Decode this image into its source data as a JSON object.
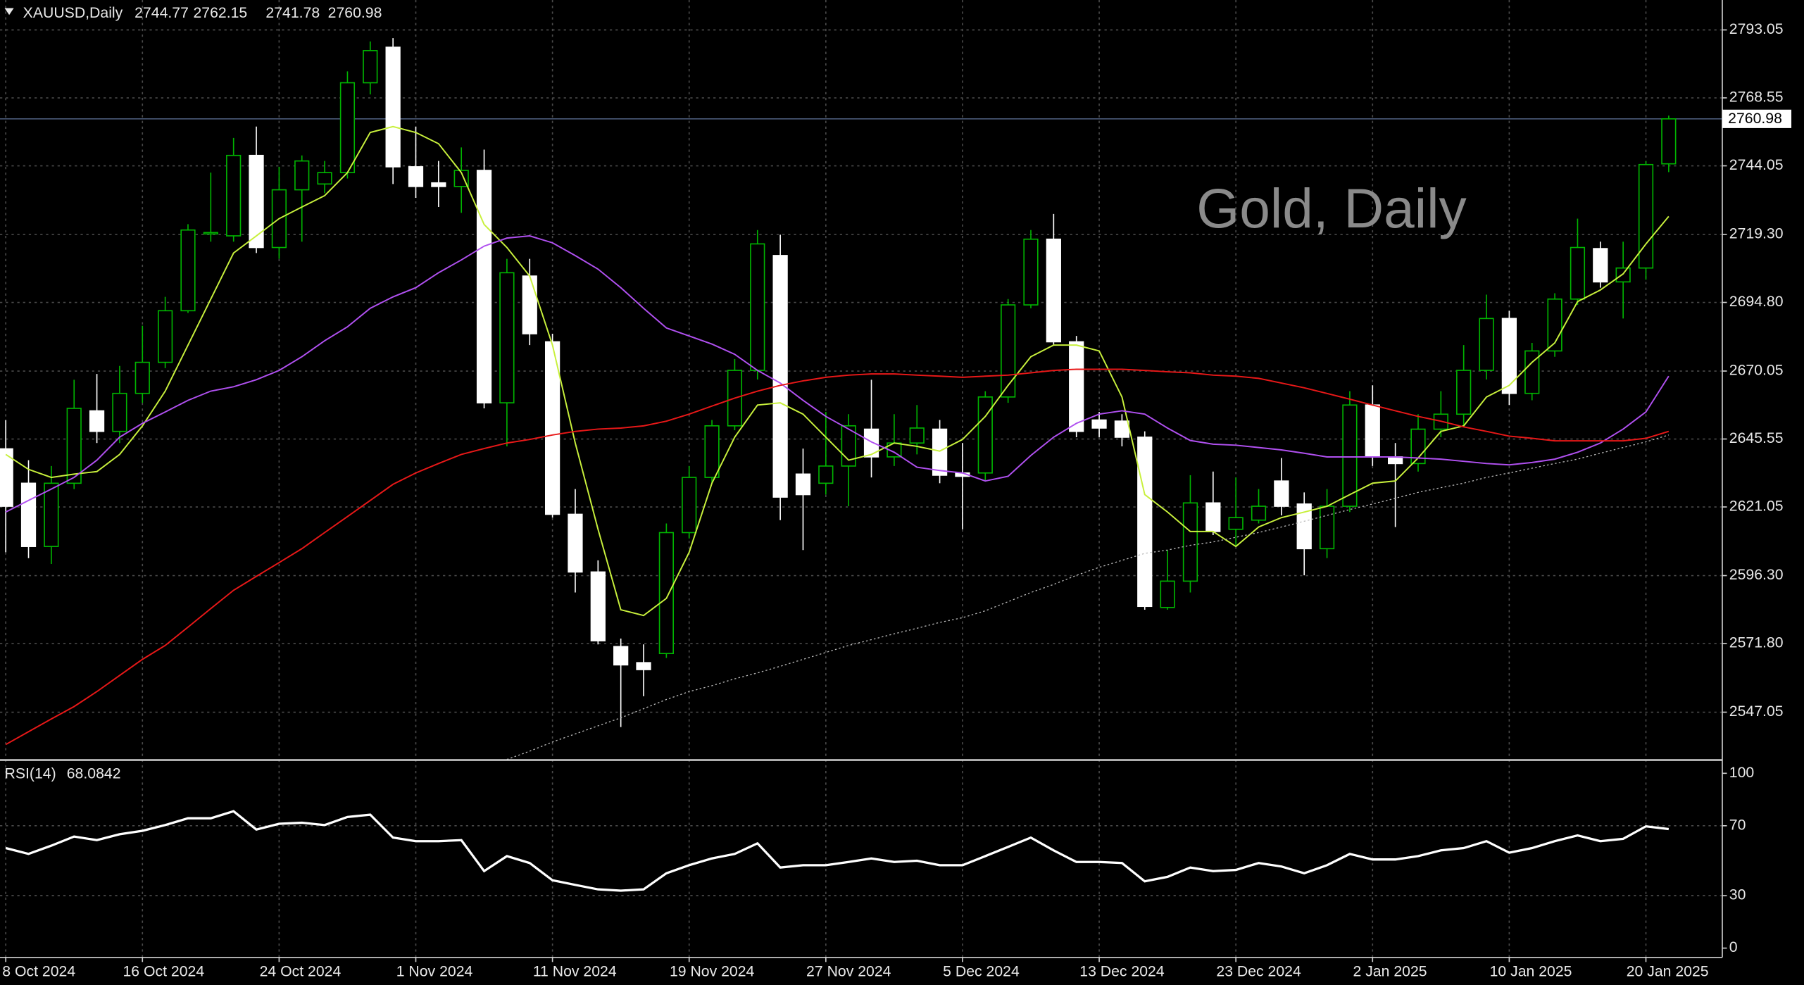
{
  "chart_data": [
    {
      "type": "candlestick",
      "symbol": "XAUUSD,Daily",
      "watermark": "Gold, Daily",
      "categories": [
        "8 Oct 2024",
        null,
        null,
        null,
        null,
        null,
        "16 Oct 2024",
        null,
        null,
        null,
        null,
        null,
        "24 Oct 2024",
        null,
        null,
        null,
        null,
        null,
        "1 Nov 2024",
        null,
        null,
        null,
        null,
        null,
        "11 Nov 2024",
        null,
        null,
        null,
        null,
        null,
        "19 Nov 2024",
        null,
        null,
        null,
        null,
        null,
        "27 Nov 2024",
        null,
        null,
        null,
        null,
        null,
        "5 Dec 2024",
        null,
        null,
        null,
        null,
        null,
        "13 Dec 2024",
        null,
        null,
        null,
        null,
        null,
        "23 Dec 2024",
        null,
        null,
        null,
        null,
        null,
        "2 Jan 2025",
        null,
        null,
        null,
        null,
        null,
        "10 Jan 2025",
        null,
        null,
        null,
        null,
        null,
        "20 Jan 2025",
        null
      ],
      "open": [
        2642.0,
        2629.6,
        2606.8,
        2629.6,
        2655.7,
        2648.3,
        2662.0,
        2673.2,
        2691.8,
        2719.6,
        2718.8,
        2747.8,
        2714.6,
        2735.4,
        2737.5,
        2741.6,
        2774.0,
        2786.8,
        2743.7,
        2737.9,
        2736.6,
        2742.4,
        2658.6,
        2704.3,
        2680.6,
        2618.4,
        2597.6,
        2570.7,
        2564.9,
        2568.2,
        2611.8,
        2631.7,
        2650.3,
        2670.3,
        2711.7,
        2632.9,
        2629.6,
        2635.8,
        2649.1,
        2639.1,
        2644.1,
        2649.1,
        2633.3,
        2633.3,
        2660.7,
        2693.9,
        2717.6,
        2680.6,
        2652.4,
        2652.0,
        2646.2,
        2584.8,
        2594.3,
        2622.5,
        2613.0,
        2616.3,
        2630.4,
        2622.1,
        2606.0,
        2621.3,
        2657.8,
        2639.1,
        2636.7,
        2649.1,
        2654.5,
        2670.3,
        2689.0,
        2662.0,
        2677.3,
        2696.0,
        2714.2,
        2702.2,
        2707.2,
        2744.77
      ],
      "high": [
        2652.4,
        2637.9,
        2635.8,
        2666.9,
        2669.0,
        2671.9,
        2686.4,
        2696.8,
        2723.0,
        2741.6,
        2754.1,
        2758.2,
        2743.7,
        2747.8,
        2745.8,
        2778.1,
        2788.9,
        2790.1,
        2758.2,
        2745.8,
        2750.7,
        2749.9,
        2710.5,
        2710.5,
        2683.5,
        2627.5,
        2601.8,
        2573.6,
        2571.5,
        2615.1,
        2635.8,
        2652.4,
        2674.4,
        2720.9,
        2719.2,
        2642.1,
        2655.3,
        2654.5,
        2666.9,
        2654.5,
        2657.8,
        2652.4,
        2644.1,
        2662.8,
        2696.0,
        2720.9,
        2726.7,
        2682.7,
        2655.3,
        2654.5,
        2648.3,
        2605.5,
        2632.5,
        2633.8,
        2631.7,
        2627.5,
        2638.7,
        2626.3,
        2627.5,
        2662.8,
        2664.9,
        2644.1,
        2654.5,
        2662.8,
        2679.4,
        2697.6,
        2691.8,
        2680.2,
        2698.1,
        2725.0,
        2716.7,
        2716.7,
        2745.8,
        2762.15
      ],
      "low": [
        2604.7,
        2602.6,
        2600.5,
        2627.5,
        2644.1,
        2644.1,
        2658.6,
        2671.1,
        2691.0,
        2716.7,
        2716.7,
        2712.6,
        2710.5,
        2716.7,
        2734.2,
        2739.5,
        2769.8,
        2737.5,
        2732.5,
        2729.2,
        2727.1,
        2656.6,
        2642.9,
        2679.4,
        2617.2,
        2590.2,
        2571.5,
        2541.7,
        2552.8,
        2566.6,
        2609.7,
        2629.6,
        2648.7,
        2667.0,
        2616.3,
        2605.5,
        2625.5,
        2621.3,
        2631.7,
        2635.8,
        2640.0,
        2629.6,
        2613.0,
        2630.4,
        2658.6,
        2692.7,
        2679.4,
        2646.2,
        2646.2,
        2642.9,
        2584.0,
        2584.0,
        2590.2,
        2610.9,
        2606.8,
        2615.1,
        2618.0,
        2596.4,
        2602.6,
        2619.2,
        2635.8,
        2613.8,
        2633.8,
        2646.2,
        2650.3,
        2667.0,
        2657.8,
        2659.5,
        2675.2,
        2693.9,
        2700.1,
        2689.0,
        2703.0,
        2741.78
      ],
      "close": [
        2621.3,
        2606.8,
        2629.6,
        2656.6,
        2648.3,
        2662.0,
        2673.2,
        2691.8,
        2720.9,
        2720.0,
        2747.8,
        2714.6,
        2735.4,
        2745.8,
        2741.6,
        2774.0,
        2785.6,
        2743.7,
        2736.6,
        2736.6,
        2742.4,
        2658.6,
        2705.5,
        2683.5,
        2618.4,
        2597.6,
        2572.8,
        2564.1,
        2562.4,
        2611.8,
        2631.7,
        2650.3,
        2670.3,
        2715.9,
        2624.6,
        2625.5,
        2635.8,
        2650.3,
        2639.1,
        2644.1,
        2649.5,
        2632.5,
        2632.1,
        2660.7,
        2693.9,
        2717.6,
        2680.6,
        2648.3,
        2649.5,
        2646.2,
        2585.2,
        2594.3,
        2622.5,
        2612.2,
        2617.2,
        2621.3,
        2621.3,
        2606.0,
        2621.3,
        2657.8,
        2639.1,
        2636.7,
        2649.1,
        2654.5,
        2670.3,
        2689.0,
        2662.0,
        2677.3,
        2696.0,
        2714.6,
        2702.2,
        2707.2,
        2744.5,
        2760.98
      ],
      "bull_color": "#00b400",
      "bear_color": "#ffffff",
      "last_price_color": "#4a5a78",
      "series": [
        {
          "color": "#c8f03c",
          "values": [
            2640.0,
            2634.6,
            2631.7,
            2632.9,
            2633.8,
            2640.0,
            2650.3,
            2662.8,
            2679.4,
            2696.0,
            2712.6,
            2718.8,
            2725.0,
            2729.2,
            2733.3,
            2741.6,
            2756.1,
            2758.2,
            2756.1,
            2752.0,
            2741.6,
            2722.9,
            2714.6,
            2704.3,
            2679.4,
            2644.1,
            2613.0,
            2584.0,
            2581.9,
            2588.1,
            2604.7,
            2629.6,
            2646.2,
            2657.8,
            2658.6,
            2654.5,
            2646.2,
            2637.9,
            2640.0,
            2644.1,
            2642.9,
            2641.2,
            2645.4,
            2653.7,
            2664.9,
            2675.2,
            2679.4,
            2679.4,
            2677.3,
            2660.7,
            2625.5,
            2619.2,
            2612.2,
            2612.2,
            2606.8,
            2613.8,
            2617.2,
            2619.2,
            2621.3,
            2625.5,
            2629.6,
            2630.4,
            2638.7,
            2648.3,
            2650.3,
            2660.7,
            2664.9,
            2673.2,
            2680.2,
            2695.1,
            2699.3,
            2705.1,
            2715.9,
            2725.8
          ]
        },
        {
          "color": "#b050f0",
          "values": [
            2619.2,
            2623.4,
            2627.5,
            2631.7,
            2637.9,
            2646.2,
            2651.2,
            2655.3,
            2659.5,
            2662.8,
            2664.4,
            2666.9,
            2670.3,
            2675.2,
            2681.0,
            2686.0,
            2692.7,
            2696.8,
            2700.1,
            2705.5,
            2710.1,
            2715.1,
            2718.0,
            2718.8,
            2716.3,
            2711.7,
            2706.8,
            2700.1,
            2692.7,
            2685.6,
            2682.7,
            2679.8,
            2676.1,
            2670.3,
            2665.7,
            2659.5,
            2653.7,
            2649.1,
            2644.5,
            2640.8,
            2635.4,
            2634.2,
            2633.3,
            2630.4,
            2632.1,
            2639.6,
            2646.2,
            2651.2,
            2654.5,
            2655.7,
            2654.5,
            2649.5,
            2645.0,
            2643.7,
            2643.3,
            2642.5,
            2641.6,
            2640.4,
            2639.1,
            2639.1,
            2639.1,
            2639.1,
            2638.7,
            2638.3,
            2637.5,
            2636.7,
            2636.2,
            2637.1,
            2638.3,
            2640.8,
            2644.1,
            2649.1,
            2655.3,
            2668.2
          ]
        },
        {
          "color": "#e81818",
          "values": [
            2535.4,
            2540.0,
            2544.6,
            2549.1,
            2554.5,
            2560.3,
            2566.1,
            2571.1,
            2577.7,
            2584.4,
            2591.0,
            2596.0,
            2601.0,
            2606.0,
            2611.8,
            2617.6,
            2623.4,
            2629.2,
            2633.3,
            2636.7,
            2640.0,
            2642.1,
            2644.1,
            2645.4,
            2647.0,
            2648.3,
            2649.1,
            2649.5,
            2650.3,
            2652.0,
            2654.5,
            2657.4,
            2660.3,
            2662.8,
            2664.9,
            2666.5,
            2667.8,
            2668.6,
            2669.0,
            2669.0,
            2668.6,
            2668.2,
            2667.8,
            2668.2,
            2668.6,
            2669.4,
            2670.3,
            2670.7,
            2670.7,
            2670.7,
            2670.3,
            2669.8,
            2669.4,
            2668.6,
            2668.2,
            2667.4,
            2665.7,
            2664.0,
            2662.0,
            2659.9,
            2657.8,
            2655.7,
            2653.7,
            2652.0,
            2649.9,
            2648.3,
            2646.6,
            2645.8,
            2644.9,
            2644.9,
            2644.9,
            2644.9,
            2645.8,
            2648.3
          ]
        },
        {
          "color": "#bbbbbb",
          "dotted": true,
          "values": [
            null,
            null,
            null,
            null,
            null,
            null,
            null,
            null,
            null,
            null,
            null,
            null,
            null,
            null,
            null,
            null,
            null,
            null,
            null,
            null,
            null,
            null,
            2530.0,
            2533.0,
            2536.3,
            2539.2,
            2542.1,
            2545.0,
            2548.3,
            2551.6,
            2554.5,
            2556.6,
            2559.1,
            2561.2,
            2563.6,
            2566.1,
            2568.6,
            2571.1,
            2573.2,
            2575.3,
            2577.3,
            2579.4,
            2581.1,
            2583.6,
            2586.9,
            2590.2,
            2593.1,
            2596.4,
            2599.3,
            2601.8,
            2604.3,
            2605.5,
            2607.2,
            2608.4,
            2610.1,
            2611.8,
            2613.8,
            2615.9,
            2618.0,
            2620.1,
            2622.1,
            2624.2,
            2626.3,
            2628.0,
            2629.6,
            2631.7,
            2633.3,
            2635.0,
            2636.7,
            2638.3,
            2640.4,
            2642.5,
            2644.5,
            2647.0
          ]
        }
      ],
      "ylim": [
        2530,
        2803.84
      ],
      "yticks": [
        2793.05,
        2768.55,
        2744.05,
        {
          "value": 2719.3,
          "label": "2719.30"
        },
        {
          "value": 2694.8,
          "label": "2694.80"
        },
        2670.05,
        2645.55,
        2621.05,
        {
          "value": 2596.3,
          "label": "2596.30"
        },
        {
          "value": 2571.8,
          "label": "2571.80"
        },
        2547.05
      ],
      "grid": true
    },
    {
      "type": "line",
      "title": "RSI(14)",
      "color": "#ffffff",
      "values": [
        57.2,
        53.9,
        58.6,
        63.8,
        61.8,
        65.1,
        67.1,
        70.4,
        74.3,
        74.3,
        78.3,
        67.8,
        71.1,
        71.7,
        70.4,
        75.0,
        76.3,
        63.2,
        61.2,
        61.2,
        61.8,
        44.1,
        52.6,
        48.7,
        38.8,
        36.2,
        33.6,
        32.9,
        33.6,
        42.8,
        47.4,
        51.3,
        53.9,
        59.9,
        46.1,
        47.4,
        47.4,
        49.3,
        51.3,
        49.3,
        50.0,
        47.4,
        47.4,
        52.6,
        57.9,
        63.2,
        55.9,
        49.3,
        49.3,
        48.7,
        38.2,
        40.8,
        46.1,
        44.1,
        44.7,
        48.7,
        46.7,
        42.8,
        47.4,
        53.9,
        50.7,
        50.7,
        52.6,
        55.9,
        57.2,
        61.2,
        54.6,
        57.2,
        61.2,
        64.5,
        61.2,
        62.5,
        69.7,
        68.0842
      ],
      "ylim": [
        -5.3,
        106.6
      ],
      "yticks": [
        100,
        70,
        30,
        0
      ],
      "grid": true
    }
  ]
}
